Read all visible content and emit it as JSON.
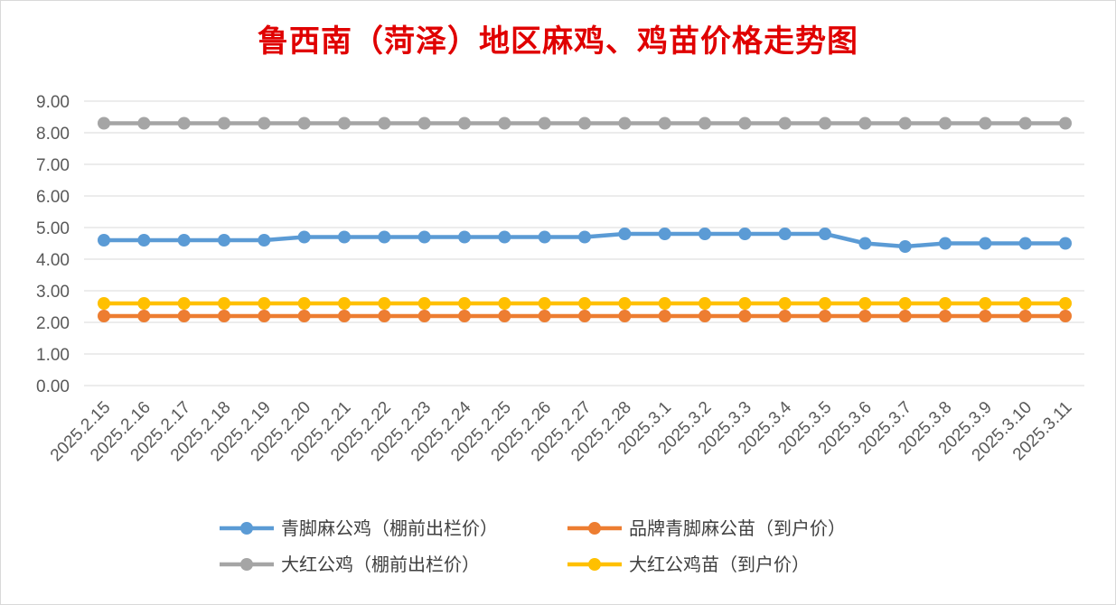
{
  "chart_data": {
    "type": "line",
    "title": "鲁西南（菏泽）地区麻鸡、鸡苗价格走势图",
    "xlabel": "",
    "ylabel": "",
    "ylim": [
      0,
      9
    ],
    "ytick_step": 1,
    "grid": true,
    "legend_position": "bottom",
    "categories": [
      "2025.2.15",
      "2025.2.16",
      "2025.2.17",
      "2025.2.18",
      "2025.2.19",
      "2025.2.20",
      "2025.2.21",
      "2025.2.22",
      "2025.2.23",
      "2025.2.24",
      "2025.2.25",
      "2025.2.26",
      "2025.2.27",
      "2025.2.28",
      "2025.3.1",
      "2025.3.2",
      "2025.3.3",
      "2025.3.4",
      "2025.3.5",
      "2025.3.6",
      "2025.3.7",
      "2025.3.8",
      "2025.3.9",
      "2025.3.10",
      "2025.3.11"
    ],
    "series": [
      {
        "name": "青脚麻公鸡（棚前出栏价）",
        "color": "#5b9bd5",
        "values": [
          4.6,
          4.6,
          4.6,
          4.6,
          4.6,
          4.7,
          4.7,
          4.7,
          4.7,
          4.7,
          4.7,
          4.7,
          4.7,
          4.8,
          4.8,
          4.8,
          4.8,
          4.8,
          4.8,
          4.5,
          4.4,
          4.5,
          4.5,
          4.5,
          4.5
        ]
      },
      {
        "name": "品牌青脚麻公苗（到户价）",
        "color": "#ed7d31",
        "values": [
          2.2,
          2.2,
          2.2,
          2.2,
          2.2,
          2.2,
          2.2,
          2.2,
          2.2,
          2.2,
          2.2,
          2.2,
          2.2,
          2.2,
          2.2,
          2.2,
          2.2,
          2.2,
          2.2,
          2.2,
          2.2,
          2.2,
          2.2,
          2.2,
          2.2
        ]
      },
      {
        "name": "大红公鸡（棚前出栏价）",
        "color": "#a5a5a5",
        "values": [
          8.3,
          8.3,
          8.3,
          8.3,
          8.3,
          8.3,
          8.3,
          8.3,
          8.3,
          8.3,
          8.3,
          8.3,
          8.3,
          8.3,
          8.3,
          8.3,
          8.3,
          8.3,
          8.3,
          8.3,
          8.3,
          8.3,
          8.3,
          8.3,
          8.3
        ]
      },
      {
        "name": "大红公鸡苗（到户价）",
        "color": "#ffc000",
        "values": [
          2.6,
          2.6,
          2.6,
          2.6,
          2.6,
          2.6,
          2.6,
          2.6,
          2.6,
          2.6,
          2.6,
          2.6,
          2.6,
          2.6,
          2.6,
          2.6,
          2.6,
          2.6,
          2.6,
          2.6,
          2.6,
          2.6,
          2.6,
          2.6,
          2.6
        ]
      }
    ]
  }
}
